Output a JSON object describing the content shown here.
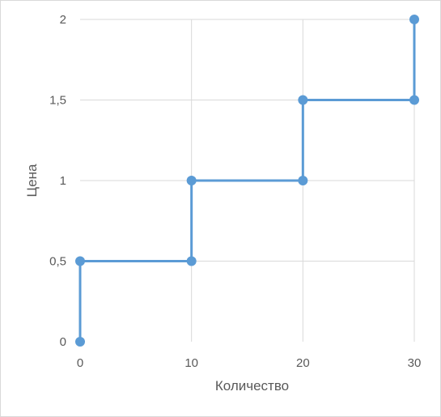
{
  "chart_data": {
    "type": "scatter",
    "subtype": "step-line-with-markers",
    "title": "",
    "xlabel": "Количество",
    "ylabel": "Цена",
    "xlim": [
      0,
      30
    ],
    "ylim": [
      0,
      2
    ],
    "x_ticks": [
      0,
      10,
      20,
      30
    ],
    "y_ticks": [
      0,
      0.5,
      1,
      1.5,
      2
    ],
    "x_tick_labels": [
      "0",
      "10",
      "20",
      "30"
    ],
    "y_tick_labels": [
      "0",
      "0,5",
      "1",
      "1,5",
      "2"
    ],
    "grid": true,
    "legend": "none",
    "series": [
      {
        "x": [
          0,
          0,
          10,
          10,
          20,
          20,
          30,
          30
        ],
        "y": [
          0,
          0.5,
          0.5,
          1,
          1,
          1.5,
          1.5,
          2
        ],
        "color": "#5b9bd5"
      }
    ]
  },
  "colors": {
    "grid": "#d9d9d9",
    "series": "#5b9bd5",
    "text": "#595959"
  }
}
